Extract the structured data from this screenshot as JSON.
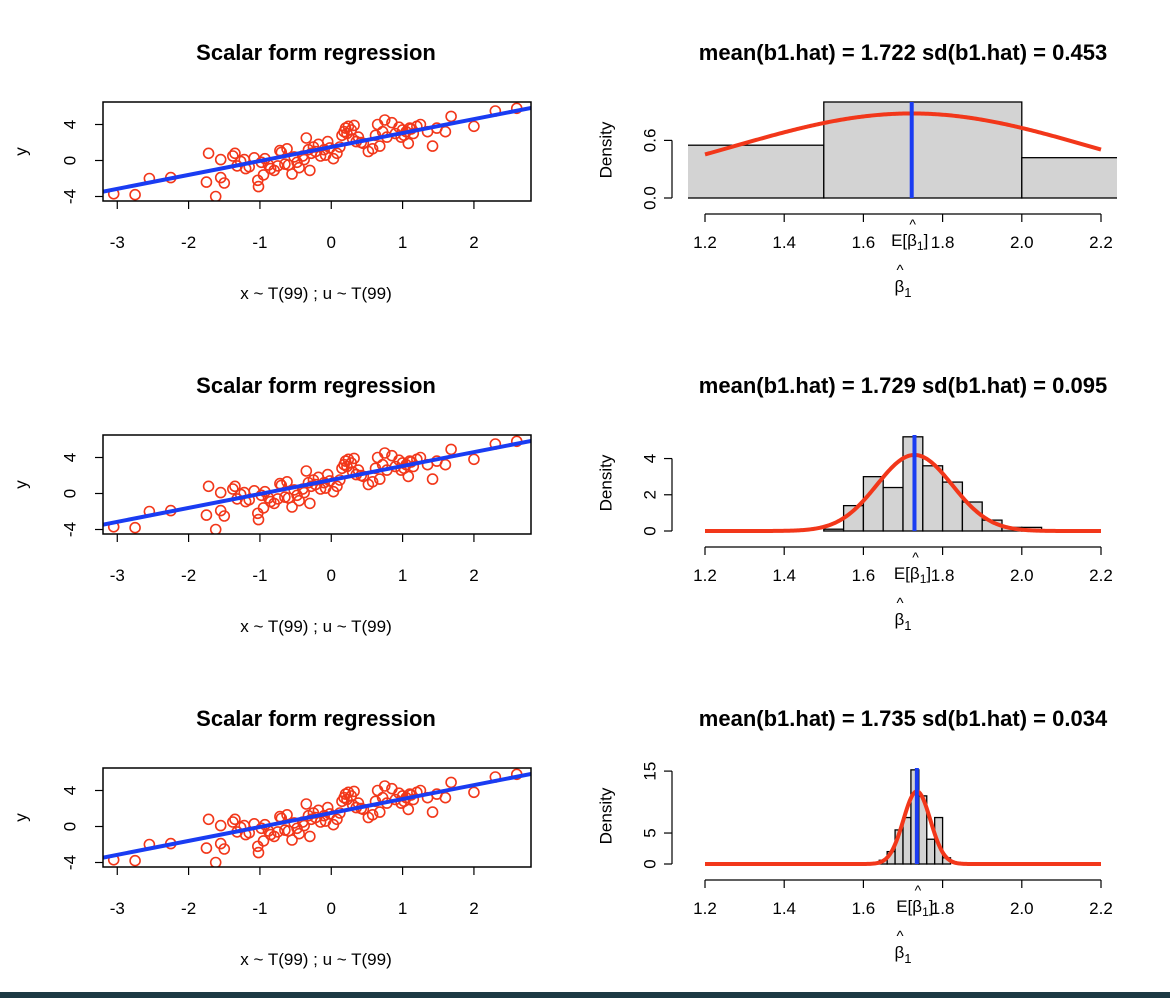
{
  "colors": {
    "points": "#f2371a",
    "fit_line": "#1a3cf2",
    "density_curve": "#f2371a",
    "mean_line": "#1a3cf2",
    "hist_fill": "#d3d3d3",
    "bottom_bar": "#1d3a44"
  },
  "chart_data": [
    {
      "type": "scatter",
      "title": "Scalar form regression",
      "xlabel": "x ~ T(99) ; u ~ T(99)",
      "ylabel": "y",
      "xlim": [
        -3.2,
        2.8
      ],
      "ylim": [
        -4.5,
        6.5
      ],
      "xticks": [
        "-3",
        "-2",
        "-1",
        "0",
        "1",
        "2"
      ],
      "yticks": [
        "-4",
        "0",
        "4"
      ],
      "fit_line": {
        "intercept": 1.5,
        "slope": 1.55
      },
      "points_ref": "scatter_points",
      "grid": false
    },
    {
      "type": "bar",
      "subtype": "histogram_with_density",
      "title": "mean(b1.hat) = 1.722  sd(b1.hat) = 0.453",
      "xlabel": "β̂1",
      "ylabel": "Density",
      "xlim": [
        1.15,
        2.25
      ],
      "ylim": [
        0,
        1.0
      ],
      "xticks": [
        "1.2",
        "1.4",
        "1.6",
        "1.8",
        "2.0",
        "2.2"
      ],
      "yticks": [
        "0.0",
        "0.6"
      ],
      "bins": [
        {
          "start": 1.0,
          "end": 1.5,
          "density": 0.55
        },
        {
          "start": 1.5,
          "end": 2.0,
          "density": 1.0
        },
        {
          "start": 2.0,
          "end": 2.5,
          "density": 0.42
        }
      ],
      "density": {
        "mean": 1.722,
        "sd": 0.453
      },
      "curve_range": [
        1.2,
        2.2
      ],
      "mean_marker": {
        "value": 1.722,
        "label": "E[β̂1]"
      },
      "grid": false
    },
    {
      "type": "scatter",
      "title": "Scalar form regression",
      "xlabel": "x ~ T(99) ; u ~ T(99)",
      "ylabel": "y",
      "xlim": [
        -3.2,
        2.8
      ],
      "ylim": [
        -4.5,
        6.5
      ],
      "xticks": [
        "-3",
        "-2",
        "-1",
        "0",
        "1",
        "2"
      ],
      "yticks": [
        "-4",
        "0",
        "4"
      ],
      "fit_line": {
        "intercept": 1.5,
        "slope": 1.55
      },
      "points_ref": "scatter_points",
      "grid": false
    },
    {
      "type": "bar",
      "subtype": "histogram_with_density",
      "title": "mean(b1.hat) = 1.729  sd(b1.hat) = 0.095",
      "xlabel": "β̂1",
      "ylabel": "Density",
      "xlim": [
        1.15,
        2.25
      ],
      "ylim": [
        0,
        5.3
      ],
      "xticks": [
        "1.2",
        "1.4",
        "1.6",
        "1.8",
        "2.0",
        "2.2"
      ],
      "yticks": [
        "0",
        "2",
        "4"
      ],
      "bins": [
        {
          "start": 1.5,
          "end": 1.55,
          "density": 0.1
        },
        {
          "start": 1.55,
          "end": 1.6,
          "density": 1.4
        },
        {
          "start": 1.6,
          "end": 1.65,
          "density": 3.0
        },
        {
          "start": 1.65,
          "end": 1.7,
          "density": 2.4
        },
        {
          "start": 1.7,
          "end": 1.75,
          "density": 5.2
        },
        {
          "start": 1.75,
          "end": 1.8,
          "density": 3.6
        },
        {
          "start": 1.8,
          "end": 1.85,
          "density": 2.7
        },
        {
          "start": 1.85,
          "end": 1.9,
          "density": 1.6
        },
        {
          "start": 1.9,
          "end": 1.95,
          "density": 0.6
        },
        {
          "start": 1.95,
          "end": 2.0,
          "density": 0.2
        },
        {
          "start": 2.0,
          "end": 2.05,
          "density": 0.2
        }
      ],
      "density": {
        "mean": 1.729,
        "sd": 0.095
      },
      "curve_range": [
        1.2,
        2.2
      ],
      "mean_marker": {
        "value": 1.729,
        "label": "E[β̂1]"
      },
      "grid": false
    },
    {
      "type": "scatter",
      "title": "Scalar form regression",
      "xlabel": "x ~ T(99) ; u ~ T(99)",
      "ylabel": "y",
      "xlim": [
        -3.2,
        2.8
      ],
      "ylim": [
        -4.5,
        6.5
      ],
      "xticks": [
        "-3",
        "-2",
        "-1",
        "0",
        "1",
        "2"
      ],
      "yticks": [
        "-4",
        "0",
        "4"
      ],
      "fit_line": {
        "intercept": 1.5,
        "slope": 1.55
      },
      "points_ref": "scatter_points",
      "grid": false
    },
    {
      "type": "bar",
      "subtype": "histogram_with_density",
      "title": "mean(b1.hat) = 1.735  sd(b1.hat) = 0.034",
      "xlabel": "β̂1",
      "ylabel": "Density",
      "xlim": [
        1.15,
        2.25
      ],
      "ylim": [
        0,
        15.5
      ],
      "xticks": [
        "1.2",
        "1.4",
        "1.6",
        "1.8",
        "2.0",
        "2.2"
      ],
      "yticks": [
        "0",
        "5",
        "15"
      ],
      "bins": [
        {
          "start": 1.64,
          "end": 1.66,
          "density": 0.6
        },
        {
          "start": 1.66,
          "end": 1.68,
          "density": 2.0
        },
        {
          "start": 1.68,
          "end": 1.7,
          "density": 5.5
        },
        {
          "start": 1.7,
          "end": 1.72,
          "density": 7.5
        },
        {
          "start": 1.72,
          "end": 1.74,
          "density": 15.2
        },
        {
          "start": 1.74,
          "end": 1.76,
          "density": 11.0
        },
        {
          "start": 1.76,
          "end": 1.78,
          "density": 4.0
        },
        {
          "start": 1.78,
          "end": 1.8,
          "density": 7.5
        },
        {
          "start": 1.8,
          "end": 1.82,
          "density": 1.0
        }
      ],
      "density": {
        "mean": 1.735,
        "sd": 0.034
      },
      "curve_range": [
        1.2,
        2.2
      ],
      "mean_marker": {
        "value": 1.735,
        "label": "E[β̂1]"
      },
      "grid": false
    }
  ],
  "scatter_points": [
    [
      -3.05,
      -3.7
    ],
    [
      -2.75,
      -3.8
    ],
    [
      -2.55,
      -2.0
    ],
    [
      -2.25,
      -1.9
    ],
    [
      -1.72,
      0.8
    ],
    [
      -1.75,
      -2.4
    ],
    [
      -1.62,
      -4.0
    ],
    [
      -1.55,
      0.1
    ],
    [
      -1.55,
      -1.9
    ],
    [
      -1.5,
      -2.5
    ],
    [
      -1.38,
      0.5
    ],
    [
      -1.35,
      0.8
    ],
    [
      -1.32,
      -0.6
    ],
    [
      -1.27,
      -0.1
    ],
    [
      -1.22,
      0.1
    ],
    [
      -1.2,
      -0.9
    ],
    [
      -1.15,
      -0.7
    ],
    [
      -1.08,
      0.3
    ],
    [
      -1.03,
      -2.2
    ],
    [
      -1.02,
      -2.9
    ],
    [
      -0.98,
      -0.2
    ],
    [
      -0.95,
      -1.6
    ],
    [
      -0.93,
      0.2
    ],
    [
      -0.88,
      -0.5
    ],
    [
      -0.85,
      -0.9
    ],
    [
      -0.8,
      -1.1
    ],
    [
      -0.75,
      -0.6
    ],
    [
      -0.72,
      1.1
    ],
    [
      -0.7,
      0.9
    ],
    [
      -0.65,
      -0.4
    ],
    [
      -0.62,
      1.3
    ],
    [
      -0.6,
      -0.5
    ],
    [
      -0.55,
      -1.5
    ],
    [
      -0.52,
      0.4
    ],
    [
      -0.48,
      -0.2
    ],
    [
      -0.45,
      -0.8
    ],
    [
      -0.4,
      0.5
    ],
    [
      -0.38,
      0.1
    ],
    [
      -0.35,
      2.5
    ],
    [
      -0.32,
      1.2
    ],
    [
      -0.3,
      -1.1
    ],
    [
      -0.28,
      0.8
    ],
    [
      -0.25,
      1.5
    ],
    [
      -0.22,
      1.0
    ],
    [
      -0.18,
      1.8
    ],
    [
      -0.15,
      0.5
    ],
    [
      -0.1,
      1.2
    ],
    [
      -0.08,
      0.6
    ],
    [
      -0.05,
      2.1
    ],
    [
      -0.02,
      1.4
    ],
    [
      0.03,
      0.2
    ],
    [
      0.08,
      0.8
    ],
    [
      0.12,
      1.5
    ],
    [
      0.15,
      2.8
    ],
    [
      0.18,
      3.2
    ],
    [
      0.2,
      3.6
    ],
    [
      0.22,
      3.0
    ],
    [
      0.24,
      3.8
    ],
    [
      0.28,
      3.4
    ],
    [
      0.3,
      2.4
    ],
    [
      0.32,
      3.9
    ],
    [
      0.35,
      2.1
    ],
    [
      0.38,
      2.6
    ],
    [
      0.42,
      2.0
    ],
    [
      0.45,
      1.9
    ],
    [
      0.52,
      1.0
    ],
    [
      0.58,
      1.3
    ],
    [
      0.62,
      2.8
    ],
    [
      0.65,
      4.0
    ],
    [
      0.68,
      1.6
    ],
    [
      0.72,
      3.2
    ],
    [
      0.75,
      4.5
    ],
    [
      0.78,
      2.6
    ],
    [
      0.85,
      4.2
    ],
    [
      0.9,
      3.0
    ],
    [
      0.95,
      3.7
    ],
    [
      0.98,
      2.6
    ],
    [
      1.0,
      3.4
    ],
    [
      1.02,
      2.8
    ],
    [
      1.05,
      3.2
    ],
    [
      1.08,
      1.9
    ],
    [
      1.1,
      3.6
    ],
    [
      1.12,
      3.5
    ],
    [
      1.15,
      3.0
    ],
    [
      1.2,
      3.8
    ],
    [
      1.25,
      4.0
    ],
    [
      1.35,
      3.2
    ],
    [
      1.42,
      1.6
    ],
    [
      1.48,
      3.6
    ],
    [
      1.68,
      4.9
    ],
    [
      2.0,
      3.8
    ],
    [
      2.3,
      5.5
    ],
    [
      2.6,
      5.8
    ],
    [
      1.6,
      3.2
    ]
  ]
}
